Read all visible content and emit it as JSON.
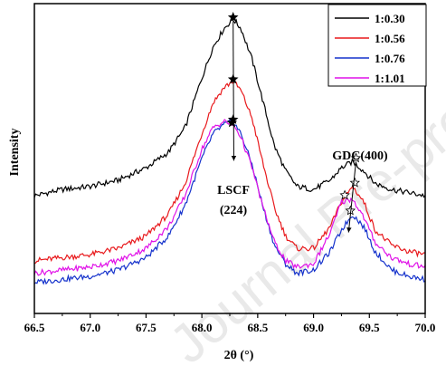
{
  "chart_data": {
    "type": "line",
    "title": "",
    "xlabel": "2θ (°)",
    "ylabel": "Intensity",
    "xlim": [
      66.5,
      70.0
    ],
    "ylim": [
      0,
      1
    ],
    "x_ticks": [
      "66.5",
      "67.0",
      "67.5",
      "68.0",
      "68.5",
      "69.0",
      "69.5",
      "70.0"
    ],
    "y_ticks_shown": false,
    "legend_position": "top-right",
    "watermark": "Journal Pre-proof",
    "series": [
      {
        "name": "1:0.30",
        "color": "#000000",
        "x": [
          66.5,
          66.75,
          67.0,
          67.25,
          67.5,
          67.7,
          67.85,
          68.0,
          68.1,
          68.2,
          68.28,
          68.35,
          68.45,
          68.55,
          68.65,
          68.75,
          68.85,
          69.0,
          69.15,
          69.25,
          69.35,
          69.45,
          69.55,
          69.7,
          69.85,
          70.0
        ],
        "y": [
          0.38,
          0.4,
          0.41,
          0.43,
          0.47,
          0.52,
          0.6,
          0.76,
          0.86,
          0.92,
          0.95,
          0.92,
          0.82,
          0.68,
          0.54,
          0.46,
          0.41,
          0.4,
          0.43,
          0.47,
          0.49,
          0.46,
          0.42,
          0.4,
          0.39,
          0.38
        ]
      },
      {
        "name": "1:0.56",
        "color": "#e8191c",
        "x": [
          66.5,
          66.75,
          67.0,
          67.25,
          67.5,
          67.7,
          67.85,
          68.0,
          68.1,
          68.2,
          68.28,
          68.35,
          68.45,
          68.55,
          68.65,
          68.75,
          68.85,
          69.0,
          69.15,
          69.25,
          69.35,
          69.45,
          69.55,
          69.7,
          69.85,
          70.0
        ],
        "y": [
          0.17,
          0.18,
          0.19,
          0.21,
          0.25,
          0.32,
          0.42,
          0.58,
          0.68,
          0.73,
          0.75,
          0.72,
          0.63,
          0.48,
          0.34,
          0.25,
          0.21,
          0.21,
          0.28,
          0.36,
          0.41,
          0.36,
          0.27,
          0.22,
          0.2,
          0.19
        ]
      },
      {
        "name": "1:0.76",
        "color": "#1532cc",
        "x": [
          66.5,
          66.75,
          67.0,
          67.25,
          67.5,
          67.7,
          67.85,
          68.0,
          68.1,
          68.2,
          68.28,
          68.35,
          68.45,
          68.55,
          68.65,
          68.75,
          68.85,
          69.0,
          69.15,
          69.25,
          69.35,
          69.45,
          69.55,
          69.7,
          69.85,
          70.0
        ],
        "y": [
          0.1,
          0.11,
          0.12,
          0.14,
          0.18,
          0.25,
          0.35,
          0.5,
          0.58,
          0.61,
          0.62,
          0.58,
          0.48,
          0.34,
          0.22,
          0.16,
          0.13,
          0.14,
          0.2,
          0.27,
          0.32,
          0.28,
          0.2,
          0.14,
          0.12,
          0.11
        ]
      },
      {
        "name": "1:1.01",
        "color": "#e012e8",
        "x": [
          66.5,
          66.75,
          67.0,
          67.25,
          67.5,
          67.7,
          67.85,
          68.0,
          68.1,
          68.2,
          68.28,
          68.35,
          68.45,
          68.55,
          68.65,
          68.75,
          68.85,
          69.0,
          69.15,
          69.25,
          69.35,
          69.45,
          69.55,
          69.7,
          69.85,
          70.0
        ],
        "y": [
          0.13,
          0.14,
          0.15,
          0.17,
          0.21,
          0.28,
          0.38,
          0.53,
          0.6,
          0.62,
          0.61,
          0.57,
          0.47,
          0.34,
          0.23,
          0.17,
          0.15,
          0.16,
          0.26,
          0.36,
          0.37,
          0.31,
          0.23,
          0.18,
          0.16,
          0.15
        ]
      }
    ],
    "annotations": [
      {
        "text": "LSCF",
        "near_x": 68.28
      },
      {
        "text": "(224)",
        "near_x": 68.28
      },
      {
        "text": "GDC(400)",
        "near_x": 69.35
      }
    ],
    "markers": {
      "lscf_peaks": [
        {
          "x": 68.28,
          "y": 0.95
        },
        {
          "x": 68.28,
          "y": 0.75
        },
        {
          "x": 68.28,
          "y": 0.62
        },
        {
          "x": 68.27,
          "y": 0.61
        }
      ],
      "gdc_peaks": [
        {
          "x": 69.38,
          "y": 0.49
        },
        {
          "x": 69.37,
          "y": 0.41
        },
        {
          "x": 69.33,
          "y": 0.32
        },
        {
          "x": 69.28,
          "y": 0.37
        }
      ]
    }
  }
}
